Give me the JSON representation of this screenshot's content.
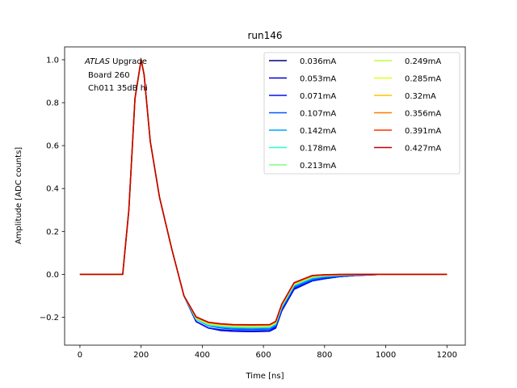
{
  "chart_data": {
    "type": "line",
    "title": "run146",
    "xlabel": "Time [ns]",
    "ylabel": "Amplitude [ADC counts]",
    "xlim": [
      -50,
      1260
    ],
    "ylim": [
      -0.33,
      1.06
    ],
    "xticks": [
      0,
      200,
      400,
      600,
      800,
      1000,
      1200
    ],
    "yticks": [
      -0.2,
      0.0,
      0.2,
      0.4,
      0.6,
      0.8,
      1.0
    ],
    "xtick_labels": [
      "0",
      "200",
      "400",
      "600",
      "800",
      "1000",
      "1200"
    ],
    "ytick_labels": [
      "−0.2",
      "0.0",
      "0.2",
      "0.4",
      "0.6",
      "0.8",
      "1.0"
    ],
    "grid": false,
    "legend_placement": "upper-right",
    "legend_columns": 2,
    "annotation": {
      "line1_italic": "ATLAS",
      "line1_rest": " Upgrade",
      "line2": "Board 260",
      "line3": "Ch011 35dB hi"
    },
    "x": [
      0,
      140,
      160,
      180,
      200,
      210,
      230,
      260,
      300,
      340,
      380,
      420,
      460,
      500,
      560,
      620,
      640,
      660,
      700,
      760,
      800,
      850,
      900,
      1000,
      1200
    ],
    "series": [
      {
        "name": "0.036mA",
        "color": "#00007f",
        "values": [
          0,
          0,
          0.3,
          0.82,
          1.0,
          0.93,
          0.62,
          0.36,
          0.12,
          -0.1,
          -0.22,
          -0.25,
          -0.26,
          -0.265,
          -0.267,
          -0.265,
          -0.25,
          -0.17,
          -0.07,
          -0.03,
          -0.02,
          -0.01,
          -0.005,
          0,
          0
        ]
      },
      {
        "name": "0.053mA",
        "color": "#0000d4",
        "values": [
          0,
          0,
          0.3,
          0.82,
          1.0,
          0.93,
          0.62,
          0.36,
          0.12,
          -0.1,
          -0.22,
          -0.25,
          -0.262,
          -0.265,
          -0.266,
          -0.265,
          -0.25,
          -0.17,
          -0.07,
          -0.03,
          -0.02,
          -0.01,
          -0.005,
          0,
          0
        ]
      },
      {
        "name": "0.071mA",
        "color": "#0010ff",
        "values": [
          0,
          0,
          0.3,
          0.82,
          1.0,
          0.93,
          0.62,
          0.36,
          0.12,
          -0.1,
          -0.22,
          -0.25,
          -0.258,
          -0.262,
          -0.263,
          -0.262,
          -0.245,
          -0.165,
          -0.065,
          -0.03,
          -0.02,
          -0.01,
          -0.005,
          0,
          0
        ]
      },
      {
        "name": "0.107mA",
        "color": "#0058ff",
        "values": [
          0,
          0,
          0.3,
          0.82,
          1.0,
          0.93,
          0.62,
          0.36,
          0.12,
          -0.1,
          -0.21,
          -0.24,
          -0.25,
          -0.255,
          -0.256,
          -0.255,
          -0.24,
          -0.16,
          -0.06,
          -0.025,
          -0.015,
          -0.008,
          -0.003,
          0,
          0
        ]
      },
      {
        "name": "0.142mA",
        "color": "#00a4ff",
        "values": [
          0,
          0,
          0.3,
          0.82,
          1.0,
          0.93,
          0.62,
          0.36,
          0.12,
          -0.1,
          -0.21,
          -0.24,
          -0.246,
          -0.25,
          -0.251,
          -0.25,
          -0.235,
          -0.155,
          -0.055,
          -0.02,
          -0.01,
          -0.005,
          -0.002,
          0,
          0
        ]
      },
      {
        "name": "0.178mA",
        "color": "#29ffce",
        "values": [
          0,
          0,
          0.3,
          0.82,
          1.0,
          0.93,
          0.62,
          0.36,
          0.12,
          -0.1,
          -0.21,
          -0.235,
          -0.242,
          -0.246,
          -0.247,
          -0.246,
          -0.23,
          -0.15,
          -0.05,
          -0.015,
          -0.008,
          -0.004,
          -0.002,
          0,
          0
        ]
      },
      {
        "name": "0.213mA",
        "color": "#7dff7a",
        "values": [
          0,
          0,
          0.3,
          0.82,
          1.0,
          0.93,
          0.62,
          0.36,
          0.12,
          -0.1,
          -0.205,
          -0.232,
          -0.239,
          -0.243,
          -0.244,
          -0.243,
          -0.228,
          -0.148,
          -0.048,
          -0.012,
          -0.006,
          -0.003,
          -0.001,
          0,
          0
        ]
      },
      {
        "name": "0.249mA",
        "color": "#bbff3c",
        "values": [
          0,
          0,
          0.3,
          0.82,
          1.0,
          0.93,
          0.62,
          0.36,
          0.12,
          -0.1,
          -0.205,
          -0.23,
          -0.237,
          -0.241,
          -0.242,
          -0.241,
          -0.226,
          -0.146,
          -0.046,
          -0.01,
          -0.005,
          -0.002,
          -0.001,
          0,
          0
        ]
      },
      {
        "name": "0.285mA",
        "color": "#e4ff13",
        "values": [
          0,
          0,
          0.3,
          0.82,
          1.0,
          0.93,
          0.62,
          0.36,
          0.12,
          -0.1,
          -0.2,
          -0.228,
          -0.235,
          -0.239,
          -0.24,
          -0.239,
          -0.224,
          -0.144,
          -0.044,
          -0.009,
          -0.004,
          -0.002,
          -0.001,
          0,
          0
        ]
      },
      {
        "name": "0.32mA",
        "color": "#ffc400",
        "values": [
          0,
          0,
          0.3,
          0.82,
          1.0,
          0.93,
          0.62,
          0.36,
          0.12,
          -0.1,
          -0.2,
          -0.226,
          -0.233,
          -0.237,
          -0.238,
          -0.237,
          -0.222,
          -0.142,
          -0.042,
          -0.008,
          -0.004,
          -0.002,
          -0.001,
          0,
          0
        ]
      },
      {
        "name": "0.356mA",
        "color": "#ff7a00",
        "values": [
          0,
          0,
          0.3,
          0.82,
          1.0,
          0.93,
          0.62,
          0.36,
          0.12,
          -0.1,
          -0.2,
          -0.225,
          -0.232,
          -0.236,
          -0.237,
          -0.236,
          -0.221,
          -0.141,
          -0.041,
          -0.007,
          -0.003,
          -0.001,
          0,
          0,
          0
        ]
      },
      {
        "name": "0.391mA",
        "color": "#ff3000",
        "values": [
          0,
          0,
          0.3,
          0.82,
          1.0,
          0.93,
          0.62,
          0.36,
          0.12,
          -0.1,
          -0.198,
          -0.224,
          -0.231,
          -0.235,
          -0.236,
          -0.235,
          -0.22,
          -0.14,
          -0.04,
          -0.006,
          -0.002,
          -0.001,
          0,
          0,
          0
        ]
      },
      {
        "name": "0.427mA",
        "color": "#c40000",
        "values": [
          0,
          0,
          0.3,
          0.82,
          1.0,
          0.93,
          0.62,
          0.36,
          0.12,
          -0.1,
          -0.198,
          -0.223,
          -0.23,
          -0.234,
          -0.235,
          -0.234,
          -0.219,
          -0.139,
          -0.039,
          -0.005,
          -0.002,
          0,
          0,
          0,
          0
        ]
      }
    ]
  }
}
